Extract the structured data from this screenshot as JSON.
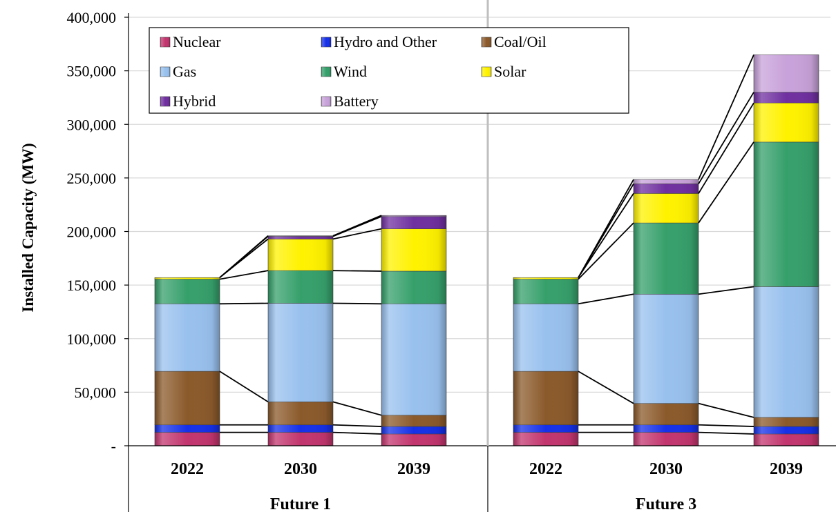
{
  "chart_data": {
    "type": "bar",
    "stacked": true,
    "ylabel": "Installed Capacity (MW)",
    "ylim": [
      0,
      400000
    ],
    "yticks": [
      0,
      50000,
      100000,
      150000,
      200000,
      250000,
      300000,
      350000,
      400000
    ],
    "ytick_labels": [
      "-",
      "50,000",
      "100,000",
      "150,000",
      "200,000",
      "250,000",
      "300,000",
      "350,000",
      "400,000"
    ],
    "grid": "horizontal",
    "legend_position": "top-left",
    "groups": [
      {
        "label": "Future 1",
        "categories": [
          "2022",
          "2030",
          "2039"
        ]
      },
      {
        "label": "Future 3",
        "categories": [
          "2022",
          "2030",
          "2039"
        ]
      }
    ],
    "series": [
      {
        "name": "Nuclear",
        "color": "#C2356E",
        "values": [
          12500,
          12500,
          11000,
          12500,
          12500,
          11000
        ]
      },
      {
        "name": "Hydro and Other",
        "color": "#1530E8",
        "values": [
          7000,
          7000,
          7000,
          7000,
          7000,
          7000
        ]
      },
      {
        "name": "Coal/Oil",
        "color": "#8B5A2B",
        "values": [
          50000,
          21500,
          10500,
          50000,
          20000,
          8500
        ]
      },
      {
        "name": "Gas",
        "color": "#99C1EE",
        "values": [
          63000,
          92000,
          104000,
          63000,
          102000,
          122000
        ]
      },
      {
        "name": "Wind",
        "color": "#36A06B",
        "values": [
          23000,
          30500,
          30500,
          23000,
          66500,
          135000
        ]
      },
      {
        "name": "Solar",
        "color": "#FFF200",
        "values": [
          1500,
          29500,
          39500,
          1500,
          27500,
          36500
        ]
      },
      {
        "name": "Hybrid",
        "color": "#7030A0",
        "values": [
          0,
          2500,
          11500,
          0,
          9000,
          10000
        ]
      },
      {
        "name": "Battery",
        "color": "#C8A2DA",
        "values": [
          0,
          500,
          1000,
          0,
          4000,
          35000
        ]
      }
    ]
  }
}
